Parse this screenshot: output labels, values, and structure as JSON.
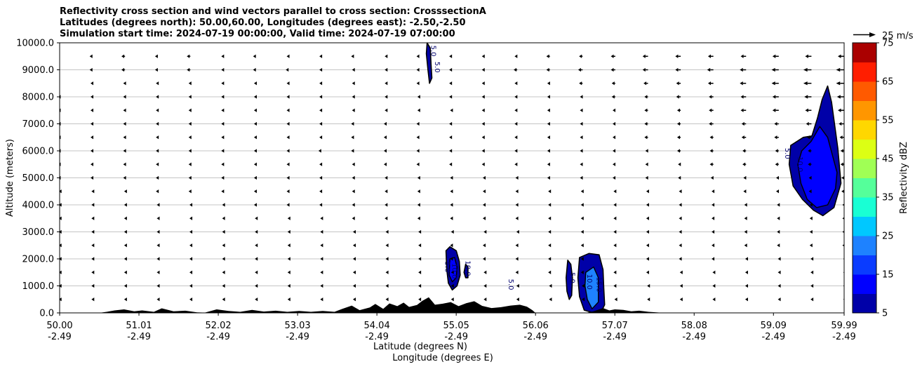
{
  "chart_data": {
    "type": "heatmap",
    "title_lines": [
      "Reflectivity cross section and wind vectors parallel to cross section: CrosssectionA",
      "Latitudes (degrees north): 50.00,60.00, Longitudes (degrees east): -2.50,-2.50",
      "Simulation start time: 2024-07-19 00:00:00, Valid time: 2024-07-19 07:00:00"
    ],
    "ylabel": "Altitude (meters)",
    "xlabel_lat": "Latitude (degrees N)",
    "xlabel_lon": "Longitude (degrees E)",
    "ylim": [
      0,
      10000
    ],
    "xlim": [
      50.0,
      59.99
    ],
    "grid": "horizontal",
    "y_ticks": [
      0,
      1000,
      2000,
      3000,
      4000,
      5000,
      6000,
      7000,
      8000,
      9000,
      10000
    ],
    "y_tick_labels": [
      "0.0",
      "1000.0",
      "2000.0",
      "3000.0",
      "4000.0",
      "5000.0",
      "6000.0",
      "7000.0",
      "8000.0",
      "9000.0",
      "10000.0"
    ],
    "x_ticks": [
      50.0,
      51.01,
      52.02,
      53.03,
      54.04,
      55.05,
      56.06,
      57.07,
      58.08,
      59.09,
      59.99
    ],
    "x_tick_labels_lat": [
      "50.00",
      "51.01",
      "52.02",
      "53.03",
      "54.04",
      "55.05",
      "56.06",
      "57.07",
      "58.08",
      "59.09",
      "59.99"
    ],
    "x_tick_labels_lon": [
      "-2.49",
      "-2.49",
      "-2.49",
      "-2.49",
      "-2.49",
      "-2.49",
      "-2.49",
      "-2.49",
      "-2.49",
      "-2.49",
      "-2.49"
    ],
    "colorbar": {
      "label": "Reflectivity dBZ",
      "min": 5,
      "max": 75,
      "step": 5,
      "tick_labels": [
        "5",
        "15",
        "25",
        "35",
        "45",
        "55",
        "65",
        "75"
      ],
      "colors": [
        "#0000a8",
        "#0000ff",
        "#0a3cff",
        "#1e82ff",
        "#00c8ff",
        "#19ffd4",
        "#55ff9a",
        "#a0ff55",
        "#dcff14",
        "#ffd700",
        "#ff9600",
        "#ff5a00",
        "#ff1e00",
        "#aa0000"
      ]
    },
    "wind_key": {
      "label": "25 m/s",
      "speed": 25
    },
    "contour_labels": [
      "5.0",
      "10.0",
      "15.0"
    ],
    "terrain": [
      [
        50.0,
        0
      ],
      [
        50.5,
        0
      ],
      [
        50.6,
        40
      ],
      [
        50.7,
        90
      ],
      [
        50.82,
        130
      ],
      [
        50.95,
        60
      ],
      [
        51.05,
        90
      ],
      [
        51.2,
        40
      ],
      [
        51.3,
        170
      ],
      [
        51.45,
        60
      ],
      [
        51.6,
        80
      ],
      [
        51.75,
        20
      ],
      [
        51.85,
        10
      ],
      [
        52.0,
        130
      ],
      [
        52.15,
        70
      ],
      [
        52.3,
        40
      ],
      [
        52.45,
        110
      ],
      [
        52.6,
        50
      ],
      [
        52.75,
        80
      ],
      [
        52.9,
        40
      ],
      [
        53.05,
        70
      ],
      [
        53.2,
        40
      ],
      [
        53.35,
        70
      ],
      [
        53.5,
        40
      ],
      [
        53.6,
        150
      ],
      [
        53.72,
        270
      ],
      [
        53.82,
        100
      ],
      [
        53.95,
        200
      ],
      [
        54.02,
        330
      ],
      [
        54.12,
        150
      ],
      [
        54.2,
        350
      ],
      [
        54.3,
        250
      ],
      [
        54.38,
        380
      ],
      [
        54.45,
        220
      ],
      [
        54.55,
        290
      ],
      [
        54.62,
        450
      ],
      [
        54.7,
        580
      ],
      [
        54.78,
        300
      ],
      [
        54.88,
        340
      ],
      [
        54.98,
        400
      ],
      [
        55.08,
        250
      ],
      [
        55.18,
        360
      ],
      [
        55.28,
        430
      ],
      [
        55.38,
        260
      ],
      [
        55.5,
        180
      ],
      [
        55.62,
        210
      ],
      [
        55.74,
        270
      ],
      [
        55.86,
        300
      ],
      [
        55.95,
        230
      ],
      [
        56.02,
        100
      ],
      [
        56.06,
        0
      ],
      [
        56.7,
        0
      ],
      [
        56.8,
        60
      ],
      [
        56.92,
        180
      ],
      [
        57.0,
        90
      ],
      [
        57.07,
        130
      ],
      [
        57.18,
        110
      ],
      [
        57.28,
        60
      ],
      [
        57.38,
        80
      ],
      [
        57.5,
        40
      ],
      [
        57.6,
        20
      ],
      [
        57.7,
        0
      ],
      [
        59.99,
        0
      ]
    ],
    "echoes": [
      {
        "outer": [
          [
            54.68,
            10000
          ],
          [
            54.72,
            9800
          ],
          [
            54.73,
            9200
          ],
          [
            54.74,
            8700
          ],
          [
            54.71,
            8500
          ],
          [
            54.69,
            9000
          ],
          [
            54.67,
            9600
          ]
        ],
        "inner": []
      },
      {
        "outer": [
          [
            54.92,
            2300
          ],
          [
            54.97,
            2450
          ],
          [
            55.05,
            2300
          ],
          [
            55.09,
            1900
          ],
          [
            55.1,
            1400
          ],
          [
            55.06,
            1000
          ],
          [
            55.0,
            850
          ],
          [
            54.95,
            1100
          ],
          [
            54.93,
            1600
          ]
        ],
        "inner": [
          [
            54.97,
            2000
          ],
          [
            55.03,
            2050
          ],
          [
            55.06,
            1700
          ],
          [
            55.05,
            1300
          ],
          [
            55.0,
            1150
          ],
          [
            54.96,
            1400
          ]
        ]
      },
      {
        "outer": [
          [
            55.17,
            1800
          ],
          [
            55.2,
            1700
          ],
          [
            55.2,
            1300
          ],
          [
            55.17,
            1300
          ],
          [
            55.15,
            1500
          ]
        ],
        "inner": []
      },
      {
        "outer": [
          [
            56.47,
            1950
          ],
          [
            56.51,
            1800
          ],
          [
            56.53,
            1300
          ],
          [
            56.52,
            650
          ],
          [
            56.49,
            500
          ],
          [
            56.46,
            800
          ],
          [
            56.45,
            1300
          ]
        ],
        "inner": []
      },
      {
        "outer": [
          [
            56.62,
            2050
          ],
          [
            56.74,
            2200
          ],
          [
            56.87,
            2150
          ],
          [
            56.92,
            1600
          ],
          [
            56.93,
            900
          ],
          [
            56.94,
            300
          ],
          [
            56.89,
            0
          ],
          [
            56.8,
            0
          ],
          [
            56.68,
            100
          ],
          [
            56.62,
            600
          ],
          [
            56.6,
            1300
          ]
        ],
        "inner": [
          [
            56.7,
            1500
          ],
          [
            56.8,
            1700
          ],
          [
            56.86,
            1300
          ],
          [
            56.86,
            400
          ],
          [
            56.78,
            150
          ],
          [
            56.72,
            500
          ],
          [
            56.69,
            1000
          ]
        ]
      },
      {
        "outer": [
          [
            59.47,
            6500
          ],
          [
            59.58,
            6550
          ],
          [
            59.65,
            7200
          ],
          [
            59.71,
            7900
          ],
          [
            59.78,
            8400
          ],
          [
            59.83,
            7800
          ],
          [
            59.91,
            6100
          ],
          [
            59.95,
            4800
          ],
          [
            59.86,
            3900
          ],
          [
            59.72,
            3600
          ],
          [
            59.6,
            3800
          ],
          [
            59.46,
            4200
          ],
          [
            59.34,
            4700
          ],
          [
            59.29,
            5500
          ],
          [
            59.31,
            6200
          ]
        ],
        "inner": [
          [
            59.45,
            6000
          ],
          [
            59.57,
            6350
          ],
          [
            59.68,
            6900
          ],
          [
            59.78,
            6500
          ],
          [
            59.9,
            5200
          ],
          [
            59.88,
            4600
          ],
          [
            59.78,
            4000
          ],
          [
            59.64,
            3900
          ],
          [
            59.52,
            4200
          ],
          [
            59.44,
            4800
          ],
          [
            59.4,
            5500
          ]
        ]
      }
    ],
    "wind_rows": [
      {
        "alt": 9500,
        "u": [
          -3,
          -3,
          -4,
          -3,
          -4,
          -2,
          -3,
          -2,
          -2,
          -3,
          -2,
          -3,
          -3,
          -3,
          -3,
          -4,
          -4,
          -5,
          -6,
          -6,
          -6,
          -6,
          -7,
          -7,
          -7
        ]
      },
      {
        "alt": 9000,
        "u": [
          -3,
          -3,
          -4,
          -3,
          -4,
          -2,
          -3,
          -3,
          -2,
          -2,
          -2,
          -3,
          -3,
          -3,
          -4,
          -4,
          -5,
          -5,
          -6,
          -6,
          -7,
          -7,
          -8,
          -9,
          -9
        ]
      },
      {
        "alt": 8500,
        "u": [
          -3,
          -2,
          -2,
          -2,
          -2,
          -2,
          -2,
          -2,
          -2,
          -2,
          -2,
          -3,
          -3,
          -3,
          -3,
          -3,
          -4,
          -4,
          -5,
          -5,
          -6,
          -7,
          -8,
          -9,
          -9
        ]
      },
      {
        "alt": 8000,
        "u": [
          -2,
          -2,
          -2,
          -2,
          -2,
          -2,
          -2,
          -2,
          -2,
          -2,
          -2,
          -2,
          -3,
          -3,
          -3,
          -3,
          -3,
          -4,
          -4,
          -5,
          -5,
          -6,
          -7,
          -8,
          -8
        ]
      },
      {
        "alt": 7500,
        "u": [
          -2,
          -2,
          -2,
          -2,
          -2,
          -2,
          -2,
          -2,
          -2,
          -2,
          -2,
          -2,
          -2,
          -3,
          -3,
          -3,
          -3,
          -3,
          -4,
          -4,
          -5,
          -6,
          -7,
          -7,
          -7
        ]
      },
      {
        "alt": 7000,
        "u": [
          -2,
          -2,
          -2,
          -2,
          -2,
          -2,
          -2,
          -2,
          -2,
          -3,
          -3,
          -3,
          -3,
          -3,
          -3,
          -3,
          -3,
          -3,
          -4,
          -4,
          -5,
          -5,
          -5,
          -6,
          -6
        ]
      },
      {
        "alt": 6500,
        "u": [
          -2,
          -2,
          -2,
          -2,
          -2,
          -2,
          -2,
          -2,
          -2,
          -3,
          -3,
          -3,
          -3,
          -3,
          -3,
          -3,
          -3,
          -3,
          -4,
          -4,
          -4,
          -5,
          -5,
          -5,
          -5
        ]
      },
      {
        "alt": 6000,
        "u": [
          -2,
          -2,
          -2,
          -2,
          -2,
          -2,
          -2,
          -2,
          -3,
          -3,
          -3,
          -3,
          -3,
          -3,
          -3,
          -3,
          -3,
          -3,
          -3,
          -4,
          -4,
          -4,
          -4,
          -4,
          -4
        ]
      },
      {
        "alt": 5500,
        "u": [
          -2,
          -2,
          -2,
          -2,
          -2,
          -2,
          -2,
          -2,
          -2,
          -2,
          -3,
          -3,
          -3,
          -3,
          -3,
          -3,
          -3,
          -3,
          -3,
          -3,
          -4,
          -4,
          -4,
          -4,
          -4
        ]
      },
      {
        "alt": 5000,
        "u": [
          -2,
          -2,
          -2,
          -2,
          -2,
          -2,
          -2,
          -2,
          -2,
          -2,
          -2,
          -2,
          -2,
          -2,
          -2,
          -3,
          -3,
          -3,
          -3,
          -3,
          -3,
          -3,
          -3,
          -3,
          -3
        ]
      },
      {
        "alt": 4500,
        "u": [
          -1,
          -1,
          -1,
          -2,
          -2,
          -2,
          -2,
          -2,
          -2,
          -2,
          -2,
          -2,
          -2,
          -2,
          -2,
          -2,
          -2,
          -2,
          -2,
          -2,
          -2,
          -3,
          -3,
          -3,
          -3
        ]
      },
      {
        "alt": 4000,
        "u": [
          -1,
          -1,
          -1,
          -1,
          -1,
          -1,
          -2,
          -2,
          -2,
          -2,
          -2,
          -2,
          -2,
          -2,
          -2,
          -2,
          -2,
          -2,
          -2,
          -2,
          -2,
          -2,
          -2,
          -2,
          -2
        ]
      },
      {
        "alt": 3500,
        "u": [
          -1,
          -1,
          -1,
          -1,
          -1,
          -1,
          -1,
          -1,
          -1,
          -2,
          -2,
          -2,
          -2,
          -2,
          -2,
          -2,
          -2,
          -2,
          -2,
          -2,
          -2,
          -2,
          -2,
          -2,
          -2
        ]
      },
      {
        "alt": 3000,
        "u": [
          -1,
          -1,
          -1,
          -1,
          -1,
          -1,
          -1,
          -1,
          -1,
          -1,
          -1,
          -1,
          -1,
          -1,
          -1,
          -2,
          -2,
          -2,
          -2,
          -2,
          -2,
          -2,
          -2,
          -2,
          -2
        ]
      },
      {
        "alt": 2500,
        "u": [
          -1,
          -1,
          -1,
          -1,
          -1,
          -1,
          -1,
          -1,
          -1,
          -1,
          -1,
          -1,
          -2,
          -2,
          -2,
          -2,
          -2,
          -2,
          -2,
          -2,
          -2,
          -2,
          -2,
          -2,
          -2
        ]
      },
      {
        "alt": 2000,
        "u": [
          -1,
          -1,
          -1,
          -1,
          -1,
          -1,
          -1,
          -1,
          -1,
          -1,
          -1,
          -1,
          -2,
          -2,
          -2,
          -2,
          -2,
          -2,
          -2,
          -2,
          -2,
          -1,
          -1,
          -1,
          -1
        ]
      },
      {
        "alt": 1500,
        "u": [
          -1,
          -1,
          -1,
          -1,
          -1,
          -1,
          -1,
          -1,
          -1,
          -1,
          -1,
          -1,
          -1,
          -1,
          -2,
          -2,
          -2,
          -2,
          -2,
          -1,
          -1,
          -1,
          -1,
          -1,
          -1
        ]
      },
      {
        "alt": 1000,
        "u": [
          -1,
          -1,
          -1,
          -1,
          -1,
          -1,
          -1,
          -1,
          -1,
          -1,
          -1,
          -1,
          -1,
          -1,
          -1,
          -1,
          -1,
          -2,
          -1,
          -1,
          -1,
          -1,
          -1,
          -1,
          -1
        ]
      },
      {
        "alt": 500,
        "u": [
          -1,
          -1,
          -1,
          -1,
          -1,
          -1,
          -1,
          -1,
          -1,
          -1,
          -1,
          -1,
          -1,
          -1,
          -1,
          -1,
          -1,
          -1,
          -1,
          -1,
          -1,
          -1,
          -1,
          -1,
          -1
        ]
      }
    ]
  }
}
